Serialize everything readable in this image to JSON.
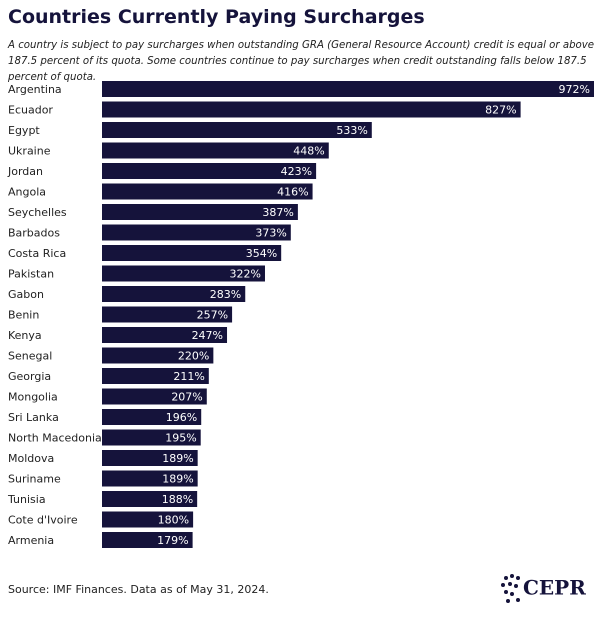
{
  "chart_data": {
    "type": "bar",
    "orientation": "horizontal",
    "title": "Countries Currently Paying Surcharges",
    "subtitle": "A country is subject to pay surcharges when outstanding GRA (General Resource Account) credit is equal or above 187.5 percent of its quota. Some countries continue to pay surcharges when credit outstanding falls below 187.5 percent of quota.",
    "categories": [
      "Argentina",
      "Ecuador",
      "Egypt",
      "Ukraine",
      "Jordan",
      "Angola",
      "Seychelles",
      "Barbados",
      "Costa Rica",
      "Pakistan",
      "Gabon",
      "Benin",
      "Kenya",
      "Senegal",
      "Georgia",
      "Mongolia",
      "Sri Lanka",
      "North Macedonia",
      "Moldova",
      "Suriname",
      "Tunisia",
      "Cote d'Ivoire",
      "Armenia"
    ],
    "values": [
      972,
      827,
      533,
      448,
      423,
      416,
      387,
      373,
      354,
      322,
      283,
      257,
      247,
      220,
      211,
      207,
      196,
      195,
      189,
      189,
      188,
      180,
      179
    ],
    "value_labels": [
      "972%",
      "827%",
      "533%",
      "448%",
      "423%",
      "416%",
      "387%",
      "373%",
      "354%",
      "322%",
      "283%",
      "257%",
      "247%",
      "220%",
      "211%",
      "207%",
      "196%",
      "195%",
      "189%",
      "189%",
      "188%",
      "180%",
      "179%"
    ],
    "color": "#15133b",
    "source": "Source: IMF Finances. Data as of May 31, 2024.",
    "logo": "CEPR"
  }
}
